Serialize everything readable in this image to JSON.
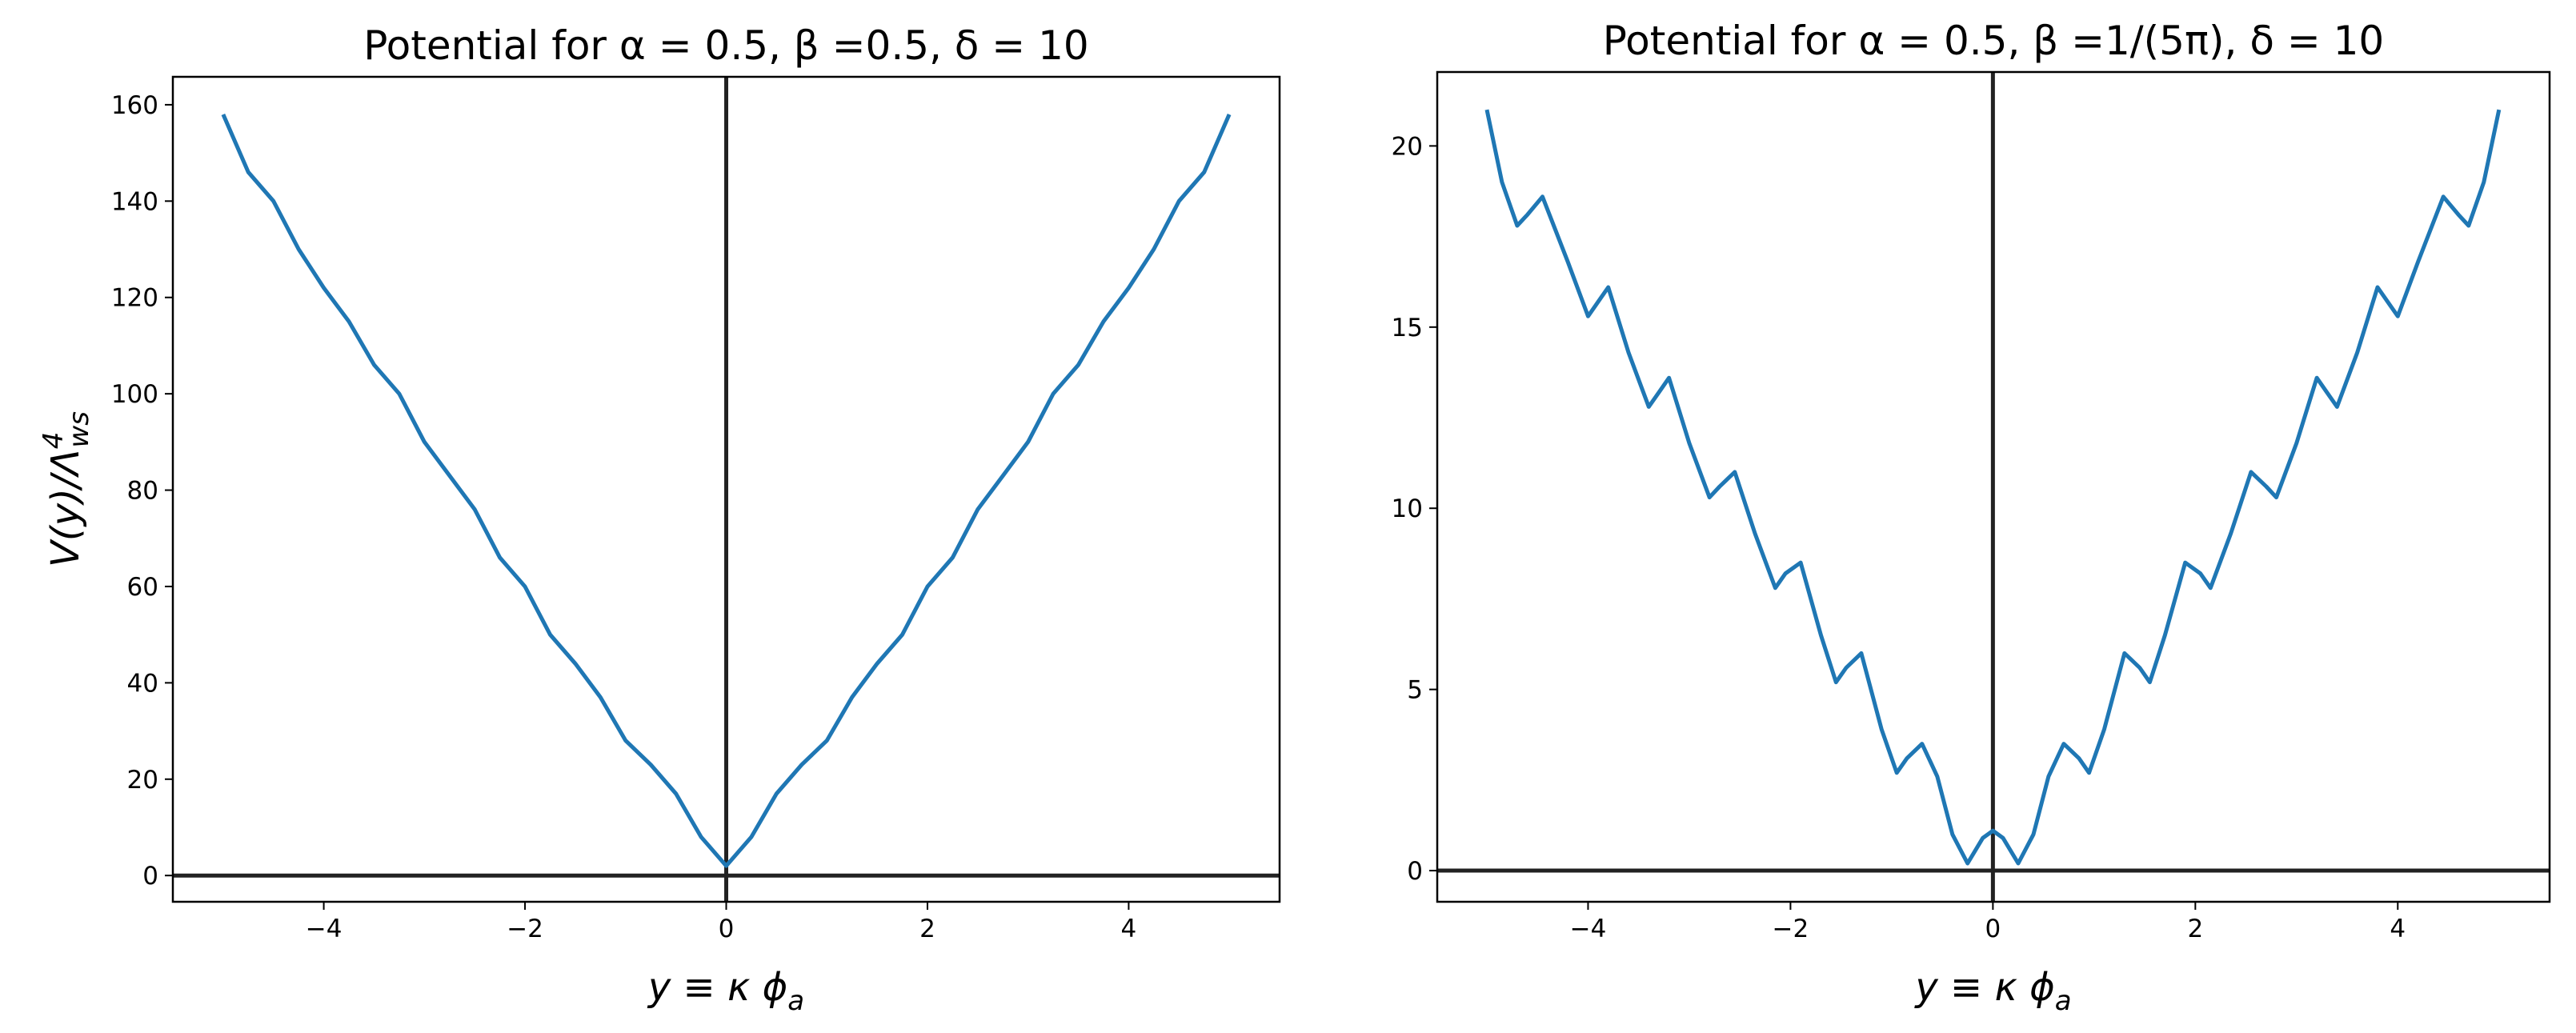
{
  "chart_data": [
    {
      "type": "line",
      "title": "Potential for α = 0.5, β =0.5, δ = 10",
      "xlabel": "y ≡ κ ϕ",
      "xlabel_sub": "a",
      "ylabel": "V(y)/Λ",
      "ylabel_sup": "4",
      "ylabel_sub": "ws",
      "color": "#1f77b4",
      "x": [
        -5,
        -4.75,
        -4.5,
        -4.25,
        -4,
        -3.75,
        -3.5,
        -3.25,
        -3,
        -2.75,
        -2.5,
        -2.25,
        -2,
        -1.75,
        -1.5,
        -1.25,
        -1,
        -0.75,
        -0.5,
        -0.25,
        0,
        0.25,
        0.5,
        0.75,
        1,
        1.25,
        1.5,
        1.75,
        2,
        2.25,
        2.5,
        2.75,
        3,
        3.25,
        3.5,
        3.75,
        4,
        4.25,
        4.5,
        4.75,
        5
      ],
      "values": [
        158,
        146,
        140,
        130,
        122,
        115,
        106,
        100,
        90,
        83,
        76,
        66,
        60,
        50,
        44,
        37,
        28,
        23,
        17,
        8,
        2,
        8,
        17,
        23,
        28,
        37,
        44,
        50,
        60,
        66,
        76,
        83,
        90,
        100,
        106,
        115,
        122,
        130,
        140,
        146,
        158
      ],
      "xlim": [
        -5.5,
        5.5
      ],
      "ylim": [
        -5.45,
        165.8
      ],
      "xticks": [
        {
          "value": -4,
          "label": "−4"
        },
        {
          "value": -2,
          "label": "−2"
        },
        0,
        2,
        4
      ],
      "yticks": [
        0,
        20,
        40,
        60,
        80,
        100,
        120,
        140,
        160
      ]
    },
    {
      "type": "line",
      "title": "Potential for α = 0.5, β =1/(5π), δ = 10",
      "xlabel": "y ≡ κ ϕ",
      "xlabel_sub": "a",
      "color": "#1f77b4",
      "x": [
        -5,
        -4.85,
        -4.7,
        -4.6,
        -4.45,
        -4.2,
        -4,
        -3.9,
        -3.8,
        -3.6,
        -3.4,
        -3.3,
        -3.2,
        -3,
        -2.8,
        -2.7,
        -2.55,
        -2.35,
        -2.15,
        -2.05,
        -1.9,
        -1.7,
        -1.55,
        -1.45,
        -1.3,
        -1.1,
        -0.95,
        -0.85,
        -0.7,
        -0.55,
        -0.4,
        -0.25,
        -0.1,
        0,
        0.1,
        0.25,
        0.4,
        0.55,
        0.7,
        0.85,
        0.95,
        1.1,
        1.3,
        1.45,
        1.55,
        1.7,
        1.9,
        2.05,
        2.15,
        2.35,
        2.55,
        2.7,
        2.8,
        3,
        3.2,
        3.3,
        3.4,
        3.6,
        3.8,
        3.9,
        4,
        4.2,
        4.45,
        4.6,
        4.7,
        4.85,
        5
      ],
      "values": [
        21,
        19,
        17.8,
        18.1,
        18.6,
        16.8,
        15.3,
        15.7,
        16.1,
        14.3,
        12.8,
        13.2,
        13.6,
        11.8,
        10.3,
        10.6,
        11,
        9.3,
        7.8,
        8.2,
        8.5,
        6.5,
        5.2,
        5.6,
        6,
        3.9,
        2.7,
        3.1,
        3.5,
        2.6,
        1,
        0.2,
        0.9,
        1.1,
        0.9,
        0.2,
        1,
        2.6,
        3.5,
        3.1,
        2.7,
        3.9,
        6,
        5.6,
        5.2,
        6.5,
        8.5,
        8.2,
        7.8,
        9.3,
        11,
        10.6,
        10.3,
        11.8,
        13.6,
        13.2,
        12.8,
        14.3,
        16.1,
        15.7,
        15.3,
        16.8,
        18.6,
        18.1,
        17.8,
        19,
        21
      ],
      "xlim": [
        -5.49,
        5.5
      ],
      "ylim": [
        -0.86,
        22.04
      ],
      "xticks": [
        {
          "value": -4,
          "label": "−4"
        },
        {
          "value": -2,
          "label": "−2"
        },
        0,
        2,
        4
      ],
      "yticks": [
        0,
        5,
        10,
        15,
        20
      ]
    }
  ]
}
